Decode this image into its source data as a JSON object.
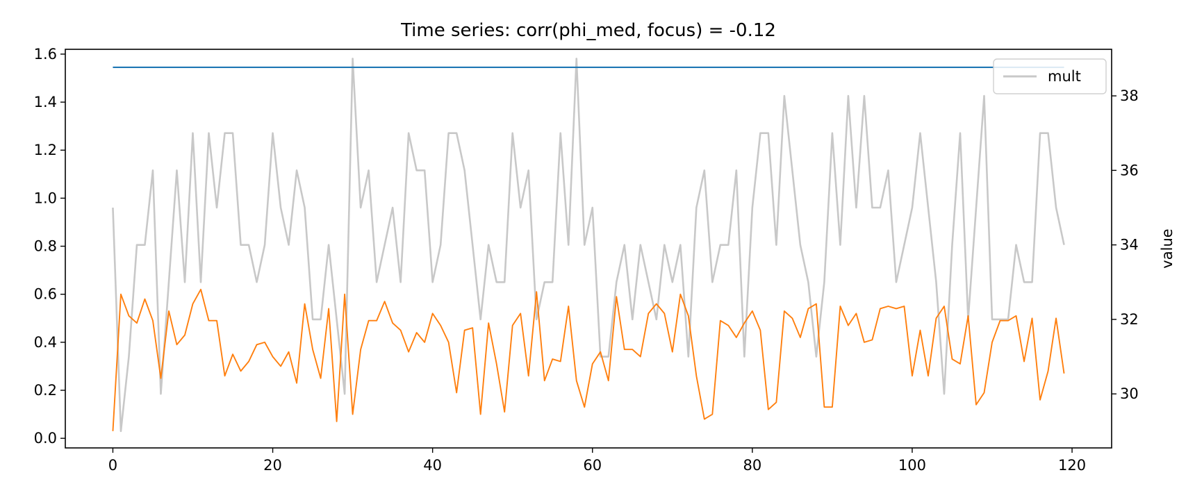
{
  "chart_data": {
    "type": "line",
    "title": "Time series: corr(phi_med, focus) = -0.12",
    "xlabel": "",
    "ylabel_left": "",
    "ylabel_right": "value",
    "xlim": [
      -5.95,
      124.95
    ],
    "ylim_left": [
      -0.04,
      1.62
    ],
    "ylim_right": [
      28.55,
      39.25
    ],
    "x_ticks": [
      0,
      20,
      40,
      60,
      80,
      100,
      120
    ],
    "y_ticks_left": [
      "0.0",
      "0.2",
      "0.4",
      "0.6",
      "0.8",
      "1.0",
      "1.2",
      "1.4",
      "1.6"
    ],
    "y_ticks_right": [
      "30",
      "32",
      "34",
      "36",
      "38"
    ],
    "grid": false,
    "legend": {
      "placement": "upper right",
      "entries": [
        "mult"
      ]
    },
    "series": [
      {
        "axis": "left",
        "color": "#1f77b4",
        "x": [
          0,
          119
        ],
        "values": [
          1.545,
          1.545
        ]
      },
      {
        "axis": "left",
        "color": "#ff7f0e",
        "x": [
          0,
          1,
          2,
          3,
          4,
          5,
          6,
          7,
          8,
          9,
          10,
          11,
          12,
          13,
          14,
          15,
          16,
          17,
          18,
          19,
          20,
          21,
          22,
          23,
          24,
          25,
          26,
          27,
          28,
          29,
          30,
          31,
          32,
          33,
          34,
          35,
          36,
          37,
          38,
          39,
          40,
          41,
          42,
          43,
          44,
          45,
          46,
          47,
          48,
          49,
          50,
          51,
          52,
          53,
          54,
          55,
          56,
          57,
          58,
          59,
          60,
          61,
          62,
          63,
          64,
          65,
          66,
          67,
          68,
          69,
          70,
          71,
          72,
          73,
          74,
          75,
          76,
          77,
          78,
          79,
          80,
          81,
          82,
          83,
          84,
          85,
          86,
          87,
          88,
          89,
          90,
          91,
          92,
          93,
          94,
          95,
          96,
          97,
          98,
          99,
          100,
          101,
          102,
          103,
          104,
          105,
          106,
          107,
          108,
          109,
          110,
          111,
          112,
          113,
          114,
          115,
          116,
          117,
          118,
          119
        ],
        "values": [
          0.03,
          0.6,
          0.51,
          0.48,
          0.58,
          0.49,
          0.25,
          0.53,
          0.39,
          0.43,
          0.56,
          0.62,
          0.49,
          0.49,
          0.26,
          0.35,
          0.28,
          0.32,
          0.39,
          0.4,
          0.34,
          0.3,
          0.36,
          0.23,
          0.56,
          0.37,
          0.25,
          0.54,
          0.07,
          0.6,
          0.1,
          0.37,
          0.49,
          0.49,
          0.57,
          0.48,
          0.45,
          0.36,
          0.44,
          0.4,
          0.52,
          0.47,
          0.4,
          0.19,
          0.45,
          0.46,
          0.1,
          0.48,
          0.31,
          0.11,
          0.47,
          0.52,
          0.26,
          0.61,
          0.24,
          0.33,
          0.32,
          0.55,
          0.24,
          0.13,
          0.31,
          0.36,
          0.24,
          0.59,
          0.37,
          0.37,
          0.34,
          0.52,
          0.56,
          0.52,
          0.36,
          0.6,
          0.51,
          0.26,
          0.08,
          0.1,
          0.49,
          0.47,
          0.42,
          0.48,
          0.53,
          0.45,
          0.12,
          0.15,
          0.53,
          0.5,
          0.42,
          0.54,
          0.56,
          0.13,
          0.13,
          0.55,
          0.47,
          0.52,
          0.4,
          0.41,
          0.54,
          0.55,
          0.54,
          0.55,
          0.26,
          0.45,
          0.26,
          0.5,
          0.55,
          0.33,
          0.31,
          0.51,
          0.14,
          0.19,
          0.4,
          0.49,
          0.49,
          0.51,
          0.32,
          0.5,
          0.16,
          0.28,
          0.5,
          0.27
        ]
      },
      {
        "name": "mult",
        "axis": "right",
        "color": "#c8c8c8",
        "x": [
          0,
          1,
          2,
          3,
          4,
          5,
          6,
          7,
          8,
          9,
          10,
          11,
          12,
          13,
          14,
          15,
          16,
          17,
          18,
          19,
          20,
          21,
          22,
          23,
          24,
          25,
          26,
          27,
          28,
          29,
          30,
          31,
          32,
          33,
          34,
          35,
          36,
          37,
          38,
          39,
          40,
          41,
          42,
          43,
          44,
          45,
          46,
          47,
          48,
          49,
          50,
          51,
          52,
          53,
          54,
          55,
          56,
          57,
          58,
          59,
          60,
          61,
          62,
          63,
          64,
          65,
          66,
          67,
          68,
          69,
          70,
          71,
          72,
          73,
          74,
          75,
          76,
          77,
          78,
          79,
          80,
          81,
          82,
          83,
          84,
          85,
          86,
          87,
          88,
          89,
          90,
          91,
          92,
          93,
          94,
          95,
          96,
          97,
          98,
          99,
          100,
          101,
          102,
          103,
          104,
          105,
          106,
          107,
          108,
          109,
          110,
          111,
          112,
          113,
          114,
          115,
          116,
          117,
          118,
          119
        ],
        "values": [
          35,
          29,
          31,
          34,
          34,
          36,
          30,
          33,
          36,
          33,
          37,
          33,
          37,
          35,
          37,
          37,
          34,
          34,
          33,
          34,
          37,
          35,
          34,
          36,
          35,
          32,
          32,
          34,
          32,
          30,
          39,
          35,
          36,
          33,
          34,
          35,
          33,
          37,
          36,
          36,
          33,
          34,
          37,
          37,
          36,
          34,
          32,
          34,
          33,
          33,
          37,
          35,
          36,
          32,
          33,
          33,
          37,
          34,
          39,
          34,
          35,
          31,
          31,
          33,
          34,
          32,
          34,
          33,
          32,
          34,
          33,
          34,
          31,
          35,
          36,
          33,
          34,
          34,
          36,
          31,
          35,
          37,
          37,
          34,
          38,
          36,
          34,
          33,
          31,
          33,
          37,
          34,
          38,
          35,
          38,
          35,
          35,
          36,
          33,
          34,
          35,
          37,
          35,
          33,
          30,
          34,
          37,
          32,
          35,
          38,
          32,
          32,
          32,
          34,
          33,
          33,
          37,
          37,
          35,
          34
        ]
      }
    ]
  }
}
